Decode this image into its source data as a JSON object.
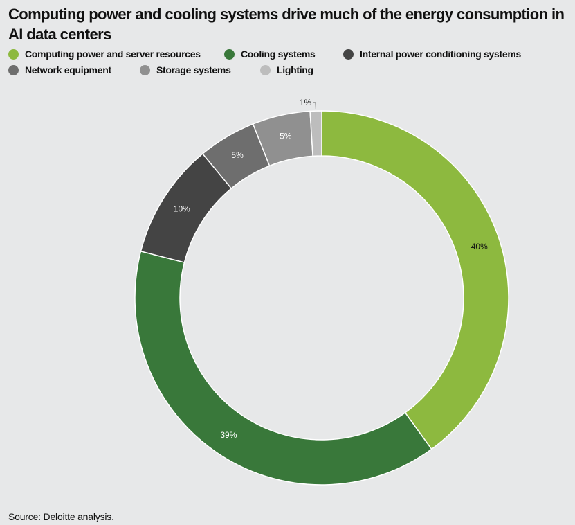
{
  "chart_data": {
    "type": "pie",
    "variant": "donut",
    "title": "Computing power and cooling systems drive much of the energy consumption in AI data centers",
    "categories": [
      "Computing power and server resources",
      "Cooling systems",
      "Internal power conditioning systems",
      "Network equipment",
      "Storage systems",
      "Lighting"
    ],
    "values": [
      40,
      39,
      10,
      5,
      5,
      1
    ],
    "value_labels": [
      "40%",
      "39%",
      "10%",
      "5%",
      "5%",
      "1%"
    ],
    "colors": [
      "#8db93f",
      "#39783a",
      "#444444",
      "#6e6e6e",
      "#909090",
      "#bdbdbd"
    ],
    "label_colors": [
      "#111111",
      "#ffffff",
      "#ffffff",
      "#ffffff",
      "#ffffff",
      "#111111"
    ],
    "legend_position": "top-left",
    "source": "Source: Deloitte analysis."
  }
}
